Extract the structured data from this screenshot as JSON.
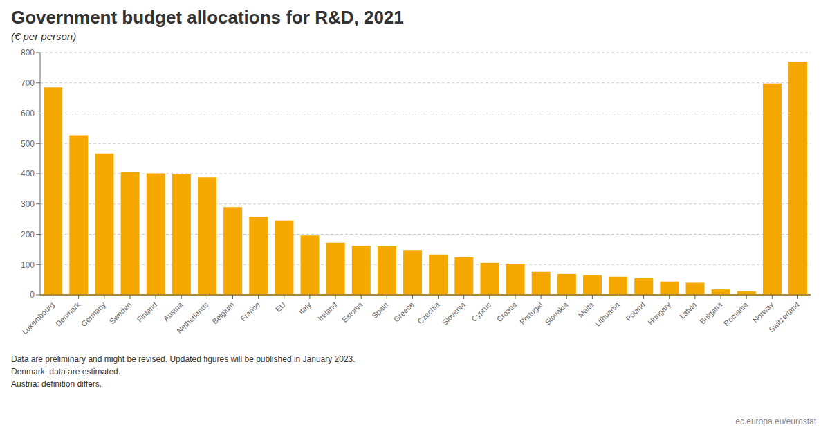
{
  "chart_data": {
    "type": "bar",
    "title": "Government budget allocations for R&D, 2021",
    "subtitle": "(€ per person)",
    "categories": [
      "Luxembourg",
      "Denmark",
      "Germany",
      "Sweden",
      "Finland",
      "Austria",
      "Netherlands",
      "Belgium",
      "France",
      "EU",
      "Italy",
      "Ireland",
      "Estonia",
      "Spain",
      "Greece",
      "Czechia",
      "Slovenia",
      "Cyprus",
      "Croatia",
      "Portugal",
      "Slovakia",
      "Malta",
      "Lithuania",
      "Poland",
      "Hungary",
      "Latvia",
      "Bulgaria",
      "Romania",
      "Norway",
      "Switzerland"
    ],
    "values": [
      685,
      527,
      467,
      406,
      401,
      399,
      388,
      290,
      258,
      245,
      196,
      172,
      162,
      160,
      148,
      133,
      124,
      106,
      103,
      76,
      69,
      65,
      60,
      55,
      44,
      40,
      18,
      12,
      698,
      770
    ],
    "color": "#F5A800",
    "ylim": [
      0,
      800
    ],
    "yticks": [
      0,
      100,
      200,
      300,
      400,
      500,
      600,
      700,
      800
    ],
    "grid": true,
    "footnote": "Data are preliminary and might be revised. Updated figures will be published in January 2023.\nDenmark: data are estimated.\nAustria: definition differs.",
    "annotations": [
      "ec.europa.eu/eurostat"
    ]
  }
}
